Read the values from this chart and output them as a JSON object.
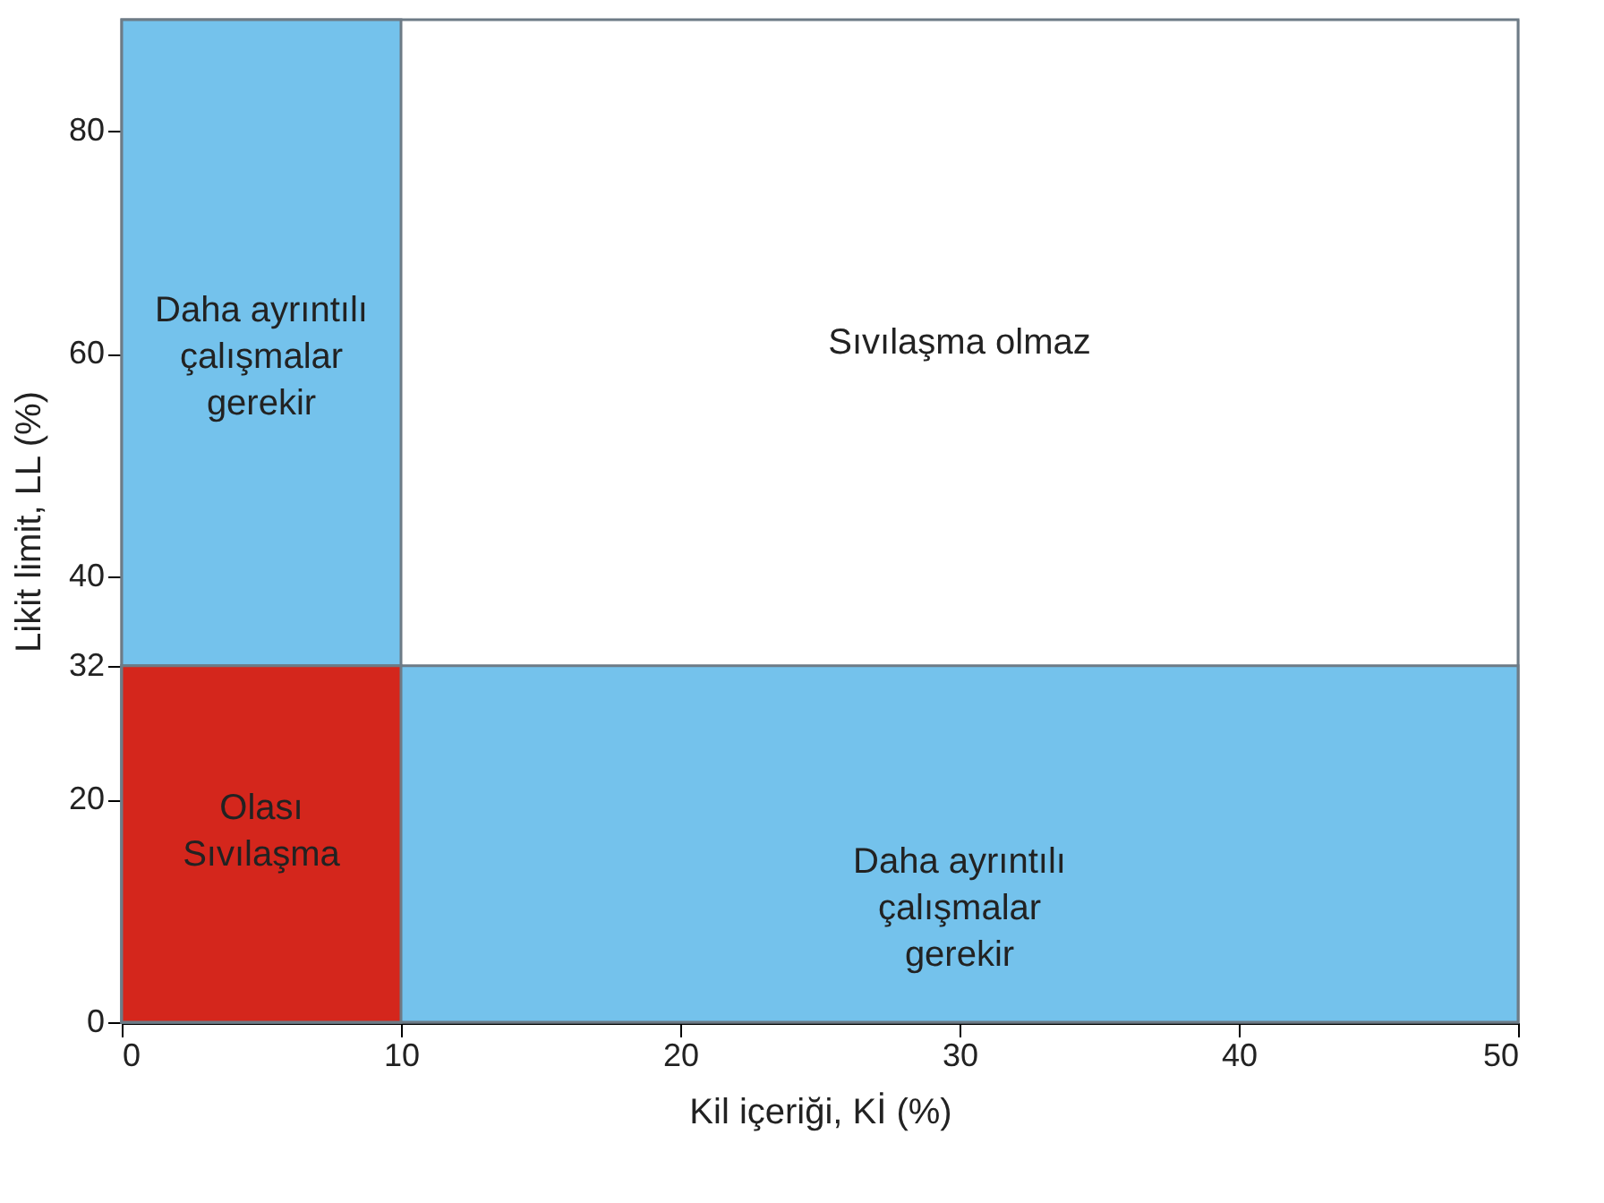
{
  "chart_data": {
    "type": "area",
    "xlabel": "Kil içeriği, Kİ (%)",
    "ylabel": "Likit limit, LL (%)",
    "xlim": [
      0,
      50
    ],
    "xticks": [
      0,
      10,
      20,
      30,
      40,
      50
    ],
    "ylim": [
      0,
      90
    ],
    "yticks": [
      0,
      20,
      32,
      40,
      60,
      80
    ],
    "series": [
      {
        "name": "Olası\nSıvılaşma",
        "color": "#d4261c",
        "x": [
          0,
          10
        ],
        "values": [
          32,
          32
        ]
      }
    ],
    "bands": [
      {
        "axis": "x",
        "from": 0,
        "to": 10,
        "color": "#74c2ec",
        "label": "Daha ayrıntılı\nçalışmalar\ngerekir"
      },
      {
        "axis": "y",
        "from": 0,
        "to": 32,
        "color": "#74c2ec",
        "label": "Daha ayrıntılı\nçalışmalar\ngerekir"
      }
    ],
    "annotations": [
      "Sıvılaşma olmaz"
    ]
  }
}
